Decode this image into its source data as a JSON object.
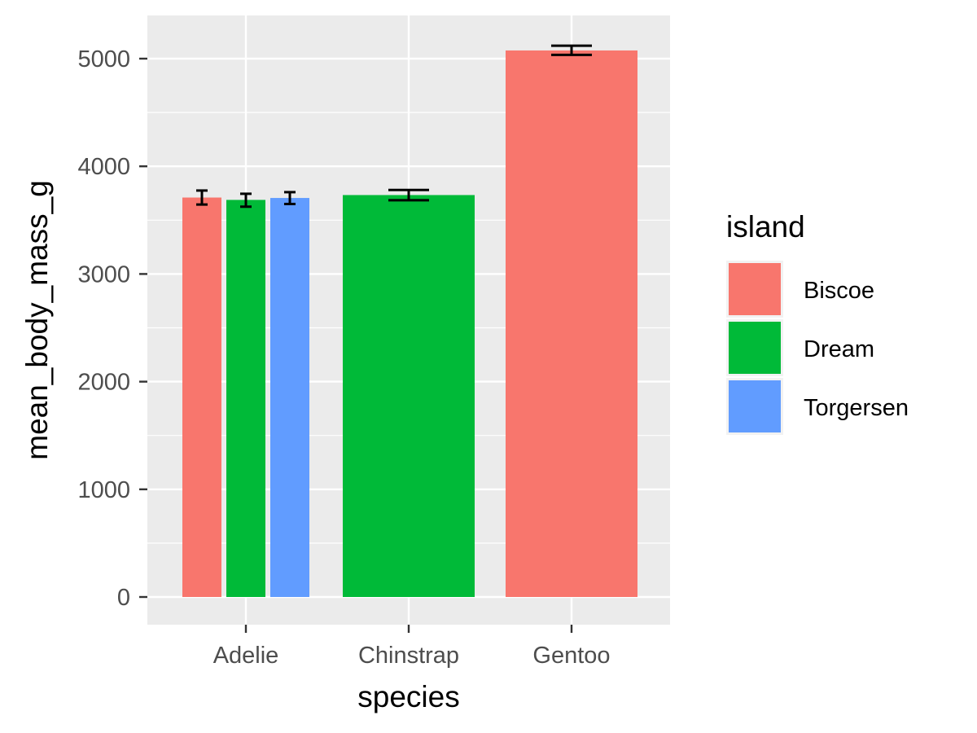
{
  "chart_data": {
    "type": "bar",
    "categories": [
      "Adelie",
      "Chinstrap",
      "Gentoo"
    ],
    "xlabel": "species",
    "ylabel": "mean_body_mass_g",
    "ylim": [
      -200,
      5400
    ],
    "yticks": [
      0,
      1000,
      2000,
      3000,
      4000,
      5000
    ],
    "grid": true,
    "legend": {
      "title": "island",
      "position": "right",
      "entries": [
        {
          "name": "Biscoe",
          "color": "#F8766D"
        },
        {
          "name": "Dream",
          "color": "#00BA38"
        },
        {
          "name": "Torgersen",
          "color": "#619CFF"
        }
      ]
    },
    "bars": [
      {
        "category": "Adelie",
        "island": "Biscoe",
        "value": 3710,
        "error_low": 3645,
        "error_high": 3775
      },
      {
        "category": "Adelie",
        "island": "Dream",
        "value": 3688,
        "error_low": 3625,
        "error_high": 3745
      },
      {
        "category": "Adelie",
        "island": "Torgersen",
        "value": 3706,
        "error_low": 3650,
        "error_high": 3760
      },
      {
        "category": "Chinstrap",
        "island": "Dream",
        "value": 3733,
        "error_low": 3685,
        "error_high": 3780
      },
      {
        "category": "Gentoo",
        "island": "Biscoe",
        "value": 5076,
        "error_low": 5035,
        "error_high": 5120
      }
    ]
  }
}
